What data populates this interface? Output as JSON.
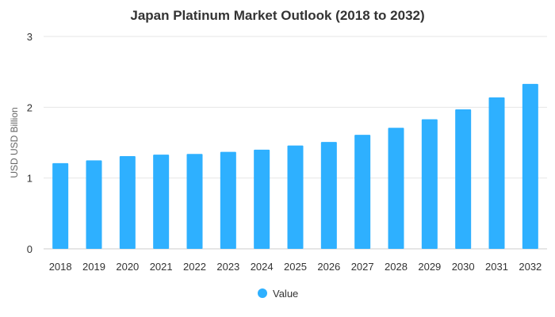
{
  "chart_data": {
    "type": "bar",
    "title": "Japan Platinum Market Outlook (2018 to 2032)",
    "xlabel": "",
    "ylabel": "USD USD Billion",
    "categories": [
      "2018",
      "2019",
      "2020",
      "2021",
      "2022",
      "2023",
      "2024",
      "2025",
      "2026",
      "2027",
      "2028",
      "2029",
      "2030",
      "2031",
      "2032"
    ],
    "series": [
      {
        "name": "Value",
        "color": "#2eb0ff",
        "values": [
          1.21,
          1.25,
          1.31,
          1.33,
          1.34,
          1.37,
          1.4,
          1.46,
          1.51,
          1.61,
          1.71,
          1.83,
          1.97,
          2.14,
          2.33
        ]
      }
    ],
    "ylim": [
      0,
      3
    ],
    "yticks": [
      "0",
      "1",
      "2",
      "3"
    ],
    "grid": true,
    "legend_position": "bottom-center"
  }
}
